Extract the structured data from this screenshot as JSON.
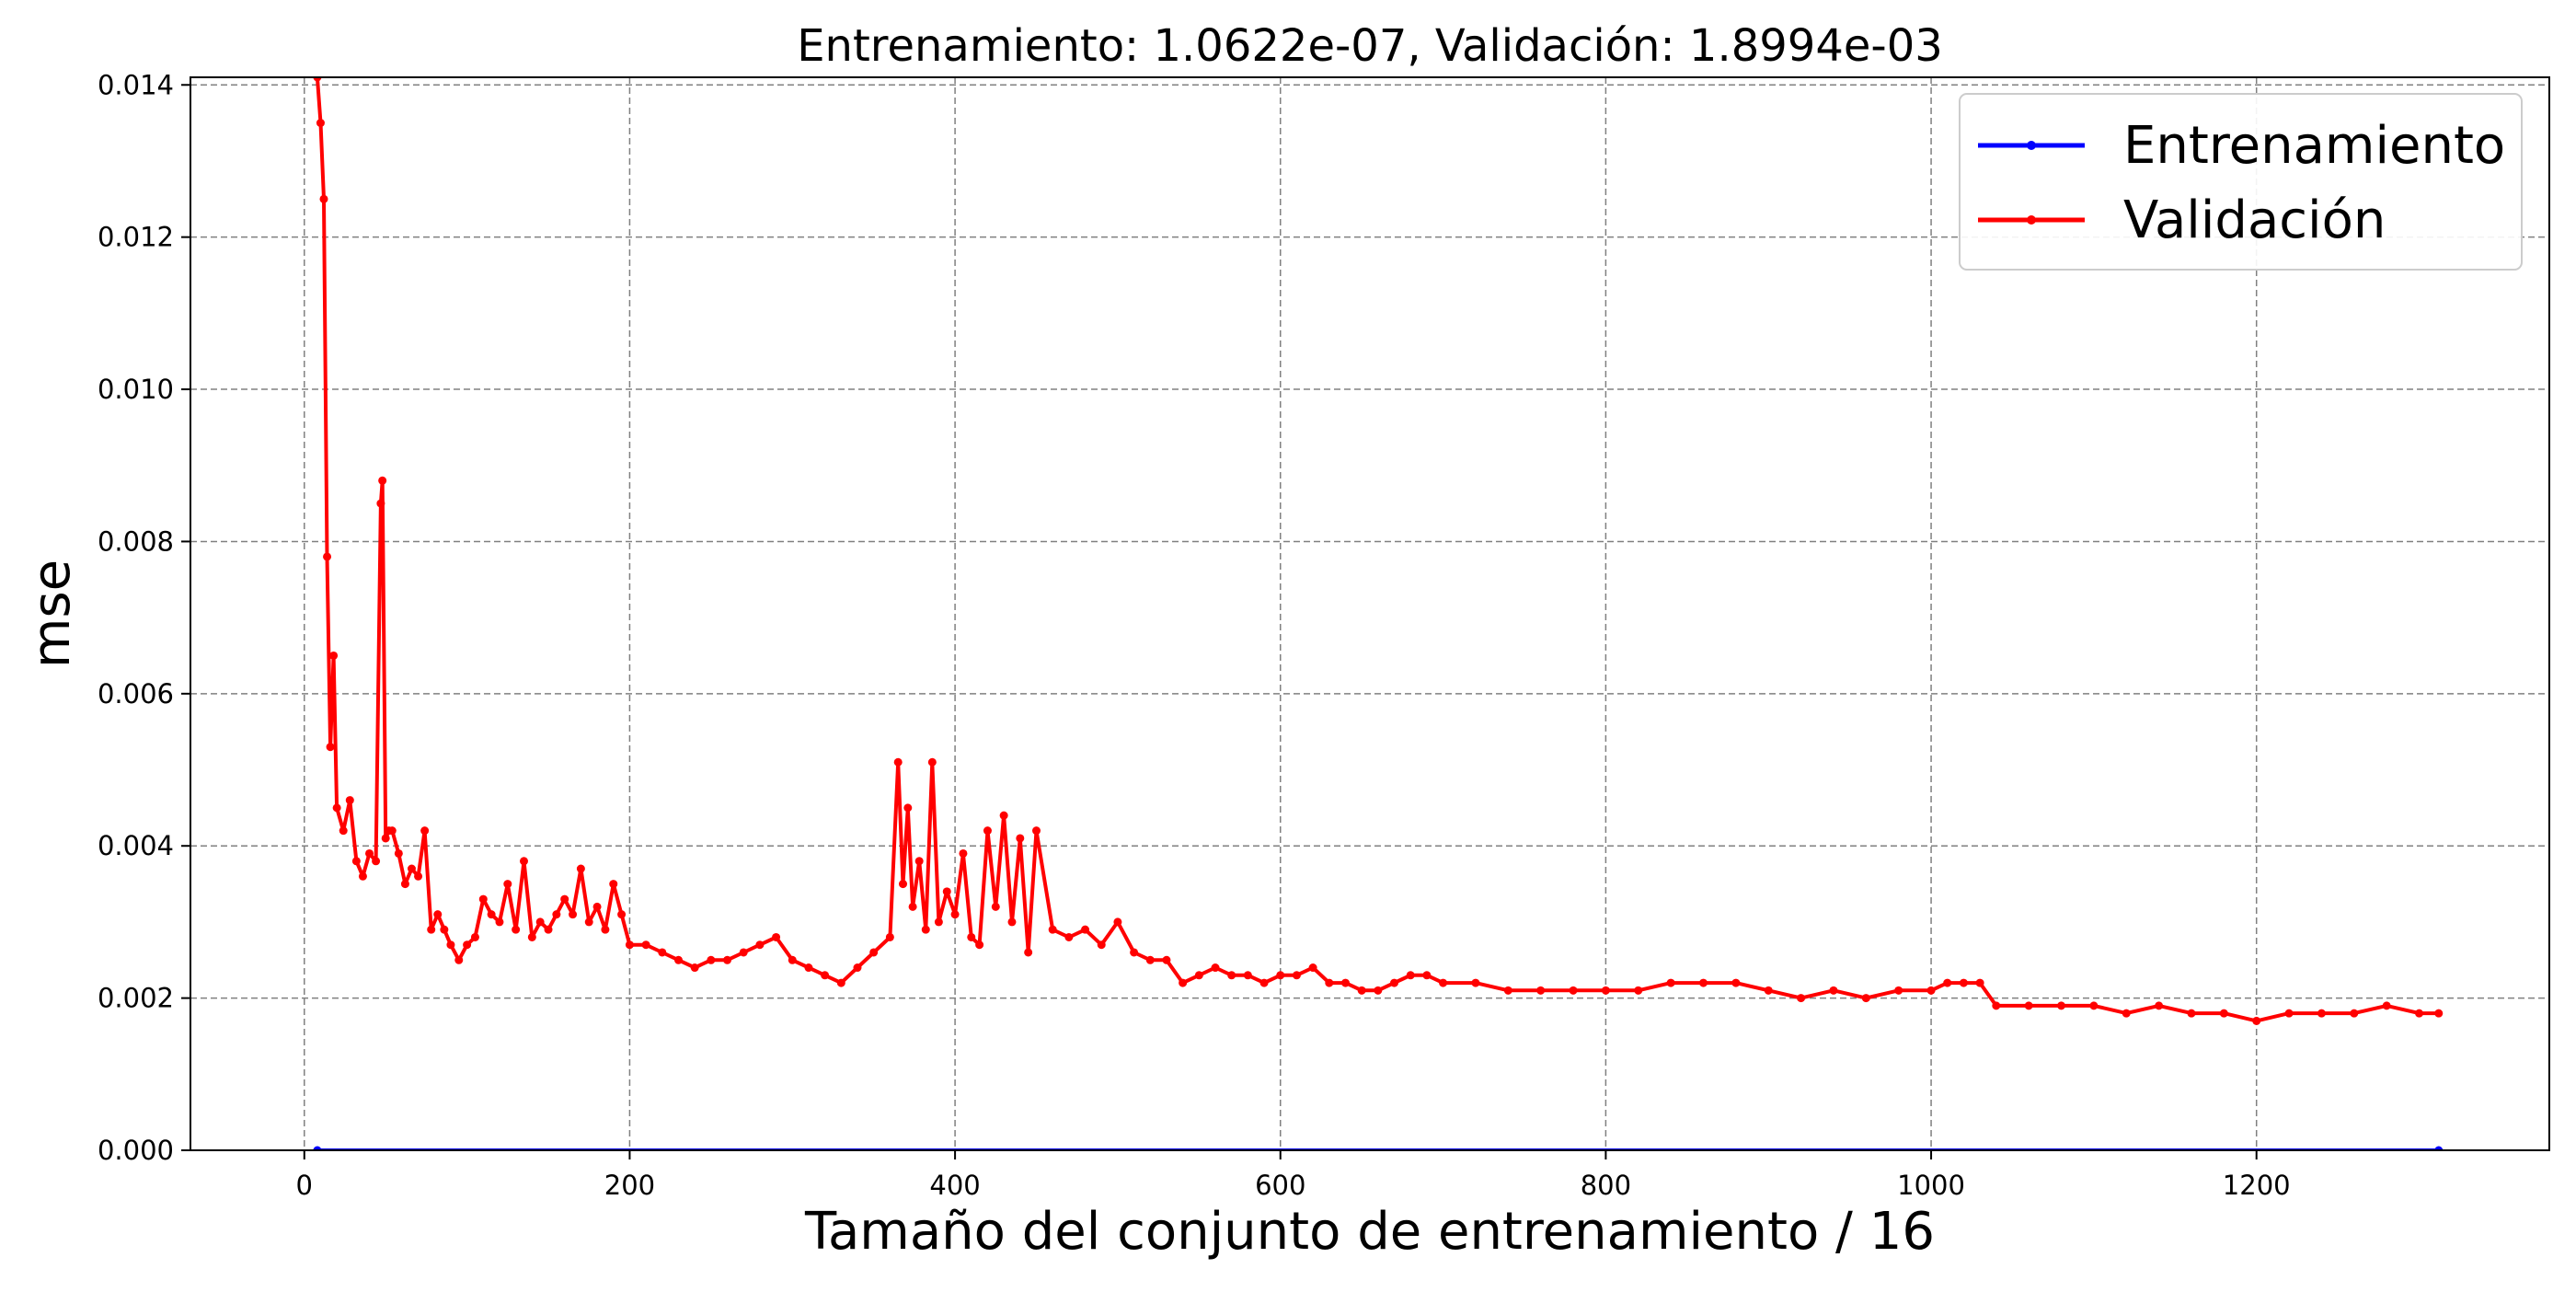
{
  "chart_data": {
    "type": "line",
    "title": "Entrenamiento: 1.0622e-07, Validación: 1.8994e-03",
    "xlabel": "Tamaño del conjunto de entrenamiento / 16",
    "ylabel": "mse",
    "xlim": [
      -70,
      1380
    ],
    "ylim": [
      0.0,
      0.0141
    ],
    "xticks": [
      0,
      200,
      400,
      600,
      800,
      1000,
      1200
    ],
    "xtick_labels": [
      "0",
      "200",
      "400",
      "600",
      "800",
      "1000",
      "1200"
    ],
    "yticks": [
      0.0,
      0.002,
      0.004,
      0.006,
      0.008,
      0.01,
      0.012,
      0.014
    ],
    "ytick_labels": [
      "0.000",
      "0.002",
      "0.004",
      "0.006",
      "0.008",
      "0.010",
      "0.012",
      "0.014"
    ],
    "grid": true,
    "legend_position": "top-right",
    "series": [
      {
        "name": "Entrenamiento",
        "color": "#0000ff",
        "x": [
          8,
          1312
        ],
        "y": [
          0.0,
          0.0
        ]
      },
      {
        "name": "Validación",
        "color": "#ff0000",
        "x": [
          8,
          10,
          12,
          14,
          16,
          18,
          20,
          24,
          28,
          32,
          36,
          40,
          44,
          47,
          48,
          50,
          52,
          54,
          58,
          62,
          66,
          70,
          74,
          78,
          82,
          86,
          90,
          95,
          100,
          105,
          110,
          115,
          120,
          125,
          130,
          135,
          140,
          145,
          150,
          155,
          160,
          165,
          170,
          175,
          180,
          185,
          190,
          195,
          200,
          210,
          220,
          230,
          240,
          250,
          260,
          270,
          280,
          290,
          300,
          310,
          320,
          330,
          340,
          350,
          360,
          365,
          368,
          371,
          374,
          378,
          382,
          386,
          390,
          395,
          400,
          405,
          410,
          415,
          420,
          425,
          430,
          435,
          440,
          445,
          450,
          460,
          470,
          480,
          490,
          500,
          510,
          520,
          530,
          540,
          550,
          560,
          570,
          580,
          590,
          600,
          610,
          620,
          630,
          640,
          650,
          660,
          670,
          680,
          690,
          700,
          720,
          740,
          760,
          780,
          800,
          820,
          840,
          860,
          880,
          900,
          920,
          940,
          960,
          980,
          1000,
          1010,
          1020,
          1030,
          1040,
          1060,
          1080,
          1100,
          1120,
          1140,
          1160,
          1180,
          1200,
          1220,
          1240,
          1260,
          1280,
          1300,
          1312
        ],
        "y": [
          0.0141,
          0.0135,
          0.0125,
          0.0078,
          0.0053,
          0.0065,
          0.0045,
          0.0042,
          0.0046,
          0.0038,
          0.0036,
          0.0039,
          0.0038,
          0.0085,
          0.0088,
          0.0041,
          0.0042,
          0.0042,
          0.0039,
          0.0035,
          0.0037,
          0.0036,
          0.0042,
          0.0029,
          0.0031,
          0.0029,
          0.0027,
          0.0025,
          0.0027,
          0.0028,
          0.0033,
          0.0031,
          0.003,
          0.0035,
          0.0029,
          0.0038,
          0.0028,
          0.003,
          0.0029,
          0.0031,
          0.0033,
          0.0031,
          0.0037,
          0.003,
          0.0032,
          0.0029,
          0.0035,
          0.0031,
          0.0027,
          0.0027,
          0.0026,
          0.0025,
          0.0024,
          0.0025,
          0.0025,
          0.0026,
          0.0027,
          0.0028,
          0.0025,
          0.0024,
          0.0023,
          0.0022,
          0.0024,
          0.0026,
          0.0028,
          0.0051,
          0.0035,
          0.0045,
          0.0032,
          0.0038,
          0.0029,
          0.0051,
          0.003,
          0.0034,
          0.0031,
          0.0039,
          0.0028,
          0.0027,
          0.0042,
          0.0032,
          0.0044,
          0.003,
          0.0041,
          0.0026,
          0.0042,
          0.0029,
          0.0028,
          0.0029,
          0.0027,
          0.003,
          0.0026,
          0.0025,
          0.0025,
          0.0022,
          0.0023,
          0.0024,
          0.0023,
          0.0023,
          0.0022,
          0.0023,
          0.0023,
          0.0024,
          0.0022,
          0.0022,
          0.0021,
          0.0021,
          0.0022,
          0.0023,
          0.0023,
          0.0022,
          0.0022,
          0.0021,
          0.0021,
          0.0021,
          0.0021,
          0.0021,
          0.0022,
          0.0022,
          0.0022,
          0.0021,
          0.002,
          0.0021,
          0.002,
          0.0021,
          0.0021,
          0.0022,
          0.0022,
          0.0022,
          0.0019,
          0.0019,
          0.0019,
          0.0019,
          0.0018,
          0.0019,
          0.0018,
          0.0018,
          0.0017,
          0.0018,
          0.0018,
          0.0018,
          0.0019,
          0.0018,
          0.0018
        ]
      }
    ]
  }
}
